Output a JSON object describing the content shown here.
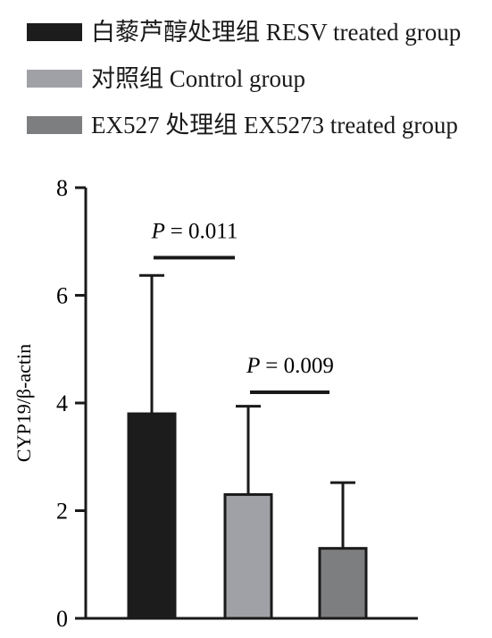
{
  "legend": [
    {
      "label": "白藜芦醇处理组 RESV treated group",
      "color": "#1c1c1c"
    },
    {
      "label": "对照组 Control group",
      "color": "#9fa1a6"
    },
    {
      "label": "EX527 处理组 EX5273 treated group",
      "color": "#7d7e80"
    }
  ],
  "chart_data": {
    "type": "bar",
    "categories": [
      "白藜芦醇处理组 RESV treated group",
      "对照组 Control group",
      "EX527 处理组 EX5273 treated group"
    ],
    "values": [
      3.8,
      2.3,
      1.3
    ],
    "error_upper": [
      6.37,
      3.94,
      2.52
    ],
    "colors": [
      "#1c1c1c",
      "#9fa1a6",
      "#7d7e80"
    ],
    "ylabel": "CYP19/β-actin",
    "ylim": [
      0,
      8
    ],
    "yticks": [
      0,
      2,
      4,
      6,
      8
    ],
    "ytick_labels": [
      "0",
      "2",
      "4",
      "6",
      "8"
    ],
    "grid": false,
    "legend_position": "top",
    "annotations": [
      {
        "p_symbol": "P",
        "text": "= 0.011",
        "between": [
          0,
          1
        ],
        "y": 6.7
      },
      {
        "p_symbol": "P",
        "text": "= 0.009",
        "between": [
          1,
          2
        ],
        "y": 4.2
      }
    ]
  }
}
